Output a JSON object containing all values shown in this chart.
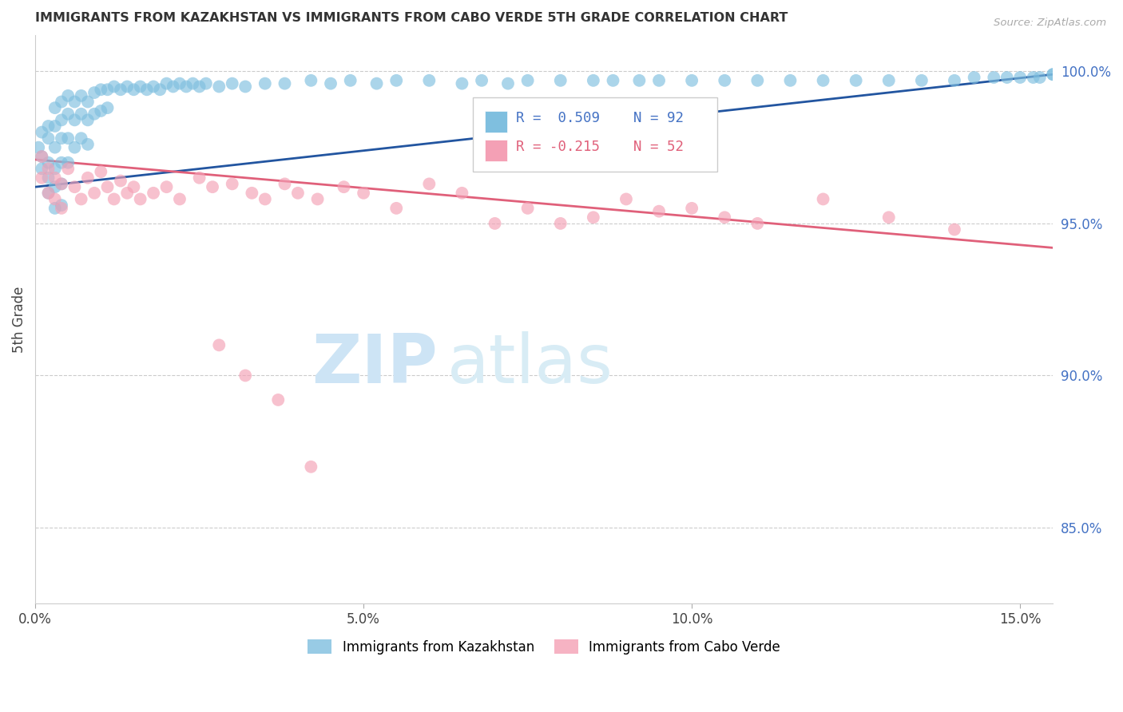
{
  "title": "IMMIGRANTS FROM KAZAKHSTAN VS IMMIGRANTS FROM CABO VERDE 5TH GRADE CORRELATION CHART",
  "source": "Source: ZipAtlas.com",
  "ylabel": "5th Grade",
  "xlabel_ticks": [
    "0.0%",
    "5.0%",
    "10.0%",
    "15.0%"
  ],
  "xlabel_vals": [
    0.0,
    0.05,
    0.1,
    0.15
  ],
  "ylabel_ticks": [
    "85.0%",
    "90.0%",
    "95.0%",
    "100.0%"
  ],
  "ylabel_vals": [
    0.85,
    0.9,
    0.95,
    1.0
  ],
  "xlim": [
    0.0,
    0.155
  ],
  "ylim": [
    0.825,
    1.012
  ],
  "color_blue": "#7fbfdf",
  "color_pink": "#f4a0b5",
  "line_blue": "#2255a0",
  "line_pink": "#e0607a",
  "background_color": "#ffffff",
  "kaz_x": [
    0.0005,
    0.001,
    0.001,
    0.001,
    0.002,
    0.002,
    0.002,
    0.002,
    0.002,
    0.003,
    0.003,
    0.003,
    0.003,
    0.003,
    0.003,
    0.004,
    0.004,
    0.004,
    0.004,
    0.004,
    0.004,
    0.005,
    0.005,
    0.005,
    0.005,
    0.006,
    0.006,
    0.006,
    0.007,
    0.007,
    0.007,
    0.008,
    0.008,
    0.008,
    0.009,
    0.009,
    0.01,
    0.01,
    0.011,
    0.011,
    0.012,
    0.013,
    0.014,
    0.015,
    0.016,
    0.017,
    0.018,
    0.019,
    0.02,
    0.021,
    0.022,
    0.023,
    0.024,
    0.025,
    0.026,
    0.028,
    0.03,
    0.032,
    0.035,
    0.038,
    0.042,
    0.045,
    0.048,
    0.052,
    0.055,
    0.06,
    0.065,
    0.068,
    0.072,
    0.075,
    0.08,
    0.085,
    0.088,
    0.092,
    0.095,
    0.1,
    0.105,
    0.11,
    0.115,
    0.12,
    0.125,
    0.13,
    0.135,
    0.14,
    0.143,
    0.146,
    0.148,
    0.15,
    0.152,
    0.153,
    0.155,
    0.155
  ],
  "kaz_y": [
    0.975,
    0.98,
    0.972,
    0.968,
    0.982,
    0.978,
    0.97,
    0.965,
    0.96,
    0.988,
    0.982,
    0.975,
    0.968,
    0.962,
    0.955,
    0.99,
    0.984,
    0.978,
    0.97,
    0.963,
    0.956,
    0.992,
    0.986,
    0.978,
    0.97,
    0.99,
    0.984,
    0.975,
    0.992,
    0.986,
    0.978,
    0.99,
    0.984,
    0.976,
    0.993,
    0.986,
    0.994,
    0.987,
    0.994,
    0.988,
    0.995,
    0.994,
    0.995,
    0.994,
    0.995,
    0.994,
    0.995,
    0.994,
    0.996,
    0.995,
    0.996,
    0.995,
    0.996,
    0.995,
    0.996,
    0.995,
    0.996,
    0.995,
    0.996,
    0.996,
    0.997,
    0.996,
    0.997,
    0.996,
    0.997,
    0.997,
    0.996,
    0.997,
    0.996,
    0.997,
    0.997,
    0.997,
    0.997,
    0.997,
    0.997,
    0.997,
    0.997,
    0.997,
    0.997,
    0.997,
    0.997,
    0.997,
    0.997,
    0.997,
    0.998,
    0.998,
    0.998,
    0.998,
    0.998,
    0.998,
    0.999,
    0.999
  ],
  "cv_x": [
    0.001,
    0.001,
    0.002,
    0.002,
    0.003,
    0.003,
    0.004,
    0.004,
    0.005,
    0.006,
    0.007,
    0.008,
    0.009,
    0.01,
    0.011,
    0.012,
    0.013,
    0.014,
    0.015,
    0.016,
    0.018,
    0.02,
    0.022,
    0.025,
    0.027,
    0.03,
    0.033,
    0.035,
    0.038,
    0.04,
    0.043,
    0.047,
    0.05,
    0.055,
    0.06,
    0.065,
    0.07,
    0.075,
    0.08,
    0.085,
    0.09,
    0.095,
    0.1,
    0.105,
    0.11,
    0.12,
    0.13,
    0.14,
    0.028,
    0.032,
    0.037,
    0.042
  ],
  "cv_y": [
    0.972,
    0.965,
    0.968,
    0.96,
    0.965,
    0.958,
    0.963,
    0.955,
    0.968,
    0.962,
    0.958,
    0.965,
    0.96,
    0.967,
    0.962,
    0.958,
    0.964,
    0.96,
    0.962,
    0.958,
    0.96,
    0.962,
    0.958,
    0.965,
    0.962,
    0.963,
    0.96,
    0.958,
    0.963,
    0.96,
    0.958,
    0.962,
    0.96,
    0.955,
    0.963,
    0.96,
    0.95,
    0.955,
    0.95,
    0.952,
    0.958,
    0.954,
    0.955,
    0.952,
    0.95,
    0.958,
    0.952,
    0.948,
    0.91,
    0.9,
    0.892,
    0.87
  ],
  "kaz_line_x": [
    0.0,
    0.155
  ],
  "kaz_line_y": [
    0.962,
    0.999
  ],
  "cv_line_x": [
    0.0,
    0.155
  ],
  "cv_line_y": [
    0.971,
    0.942
  ]
}
